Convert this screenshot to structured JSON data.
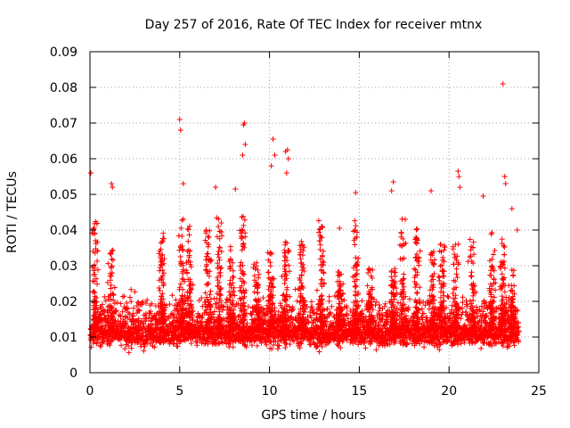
{
  "chart_data": {
    "type": "scatter",
    "title": "Day 257 of 2016, Rate Of TEC Index for receiver mtnx",
    "xlabel": "GPS time / hours",
    "ylabel": "ROTI / TECUs",
    "xlim": [
      0,
      25
    ],
    "ylim": [
      0,
      0.09
    ],
    "x_ticks": [
      0,
      5,
      10,
      15,
      20,
      25
    ],
    "x_tick_labels": [
      "0",
      "5",
      "10",
      "15",
      "20",
      "25"
    ],
    "y_ticks": [
      0,
      0.01,
      0.02,
      0.03,
      0.04,
      0.05,
      0.06,
      0.07,
      0.08,
      0.09
    ],
    "y_tick_labels": [
      "0",
      "0.01",
      "0.02",
      "0.03",
      "0.04",
      "0.05",
      "0.06",
      "0.07",
      "0.08",
      "0.09"
    ],
    "grid": true,
    "marker": "+",
    "series": [
      {
        "name": "ROTI",
        "color": "#ff0000",
        "baseline": 0.011,
        "x_range": [
          0,
          23.9
        ],
        "cluster_centers": [
          0.3,
          1.2,
          4.0,
          5.1,
          5.5,
          6.6,
          7.2,
          7.9,
          8.5,
          9.3,
          10.1,
          10.9,
          11.8,
          12.9,
          13.9,
          14.8,
          15.6,
          16.9,
          17.4,
          18.2,
          19.1,
          19.6,
          20.4,
          21.3,
          22.4,
          23.0,
          23.5
        ],
        "highlights": [
          {
            "x": 0.05,
            "y": 0.056
          },
          {
            "x": 1.2,
            "y": 0.053
          },
          {
            "x": 1.25,
            "y": 0.052
          },
          {
            "x": 5.0,
            "y": 0.071
          },
          {
            "x": 5.05,
            "y": 0.068
          },
          {
            "x": 5.2,
            "y": 0.053
          },
          {
            "x": 7.0,
            "y": 0.052
          },
          {
            "x": 8.1,
            "y": 0.0515
          },
          {
            "x": 8.5,
            "y": 0.061
          },
          {
            "x": 8.55,
            "y": 0.0695
          },
          {
            "x": 8.6,
            "y": 0.07
          },
          {
            "x": 8.65,
            "y": 0.064
          },
          {
            "x": 10.2,
            "y": 0.0655
          },
          {
            "x": 10.1,
            "y": 0.058
          },
          {
            "x": 10.3,
            "y": 0.061
          },
          {
            "x": 10.9,
            "y": 0.062
          },
          {
            "x": 11.0,
            "y": 0.0625
          },
          {
            "x": 11.05,
            "y": 0.06
          },
          {
            "x": 10.95,
            "y": 0.056
          },
          {
            "x": 13.9,
            "y": 0.0405
          },
          {
            "x": 14.8,
            "y": 0.0505
          },
          {
            "x": 16.9,
            "y": 0.0535
          },
          {
            "x": 16.8,
            "y": 0.051
          },
          {
            "x": 19.0,
            "y": 0.051
          },
          {
            "x": 20.5,
            "y": 0.0565
          },
          {
            "x": 20.55,
            "y": 0.055
          },
          {
            "x": 20.6,
            "y": 0.052
          },
          {
            "x": 21.9,
            "y": 0.0495
          },
          {
            "x": 23.0,
            "y": 0.081
          },
          {
            "x": 23.1,
            "y": 0.055
          },
          {
            "x": 23.15,
            "y": 0.053
          },
          {
            "x": 23.5,
            "y": 0.046
          },
          {
            "x": 23.8,
            "y": 0.04
          }
        ]
      }
    ]
  }
}
